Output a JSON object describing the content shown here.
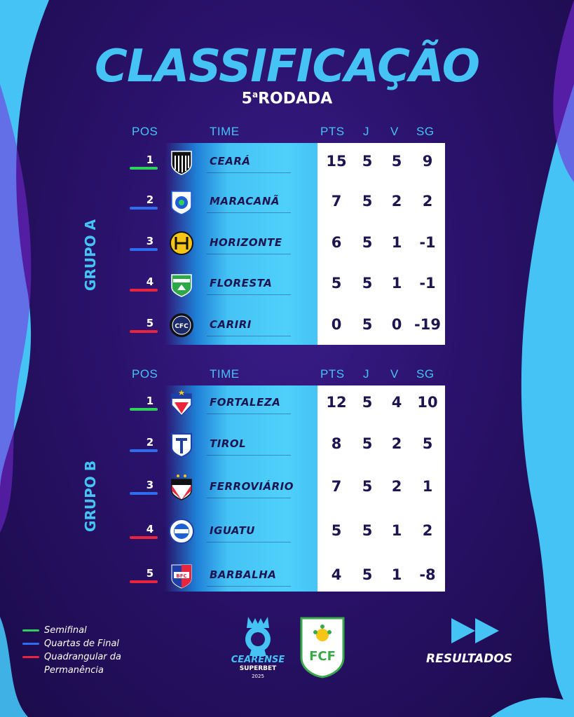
{
  "title": "CLASSIFICAÇÃO",
  "subtitle": {
    "number": "5",
    "ordinal": "a",
    "text": "RODADA"
  },
  "columns": {
    "pos": "POS",
    "team": "TIME",
    "pts": "PTS",
    "j": "J",
    "v": "V",
    "sg": "SG"
  },
  "colors": {
    "accent": "#45c3f5",
    "background": "#2a126b",
    "semifinal": "#2fd15b",
    "quarterfinal": "#2f6df0",
    "relegation": "#e8253d"
  },
  "groups": [
    {
      "label": "GRUPO A",
      "rows": [
        {
          "pos": "1",
          "zone": "semifinal",
          "badge": "ceara-badge-icon",
          "team": "CEARÁ",
          "pts": "15",
          "j": "5",
          "v": "5",
          "sg": "9"
        },
        {
          "pos": "2",
          "zone": "quarterfinal",
          "badge": "maracana-badge-icon",
          "team": "MARACANÃ",
          "pts": "7",
          "j": "5",
          "v": "2",
          "sg": "2"
        },
        {
          "pos": "3",
          "zone": "quarterfinal",
          "badge": "horizonte-badge-icon",
          "team": "HORIZONTE",
          "pts": "6",
          "j": "5",
          "v": "1",
          "sg": "-1"
        },
        {
          "pos": "4",
          "zone": "relegation",
          "badge": "floresta-badge-icon",
          "team": "FLORESTA",
          "pts": "5",
          "j": "5",
          "v": "1",
          "sg": "-1"
        },
        {
          "pos": "5",
          "zone": "relegation",
          "badge": "cariri-badge-icon",
          "team": "CARIRI",
          "pts": "0",
          "j": "5",
          "v": "0",
          "sg": "-19"
        }
      ]
    },
    {
      "label": "GRUPO B",
      "rows": [
        {
          "pos": "1",
          "zone": "semifinal",
          "badge": "fortaleza-badge-icon",
          "team": "FORTALEZA",
          "pts": "12",
          "j": "5",
          "v": "4",
          "sg": "10"
        },
        {
          "pos": "2",
          "zone": "quarterfinal",
          "badge": "tirol-badge-icon",
          "team": "TIROL",
          "pts": "8",
          "j": "5",
          "v": "2",
          "sg": "5"
        },
        {
          "pos": "3",
          "zone": "quarterfinal",
          "badge": "ferroviario-badge-icon",
          "team": "FERROVIÁRIO",
          "pts": "7",
          "j": "5",
          "v": "2",
          "sg": "1"
        },
        {
          "pos": "4",
          "zone": "relegation",
          "badge": "iguatu-badge-icon",
          "team": "IGUATU",
          "pts": "5",
          "j": "5",
          "v": "1",
          "sg": "2"
        },
        {
          "pos": "5",
          "zone": "relegation",
          "badge": "barbalha-badge-icon",
          "team": "BARBALHA",
          "pts": "4",
          "j": "5",
          "v": "1",
          "sg": "-8"
        }
      ]
    }
  ],
  "legend": [
    {
      "zone": "semifinal",
      "text": "Semifinal"
    },
    {
      "zone": "quarterfinal",
      "text": "Quartas de Final"
    },
    {
      "zone": "relegation",
      "text": "Quadrangular da"
    },
    {
      "zone": "relegation-cont",
      "text": "Permanência"
    }
  ],
  "footer": {
    "championship_logo": {
      "icon": "cearense-trophy-icon",
      "line1": "CEARENSE",
      "line2": "SUPERBET",
      "line3": "2025"
    },
    "federation_logo": {
      "icon": "fcf-crest-icon",
      "text": "FCF"
    },
    "results": {
      "icon": "fast-forward-icon",
      "label": "RESULTADOS"
    }
  }
}
